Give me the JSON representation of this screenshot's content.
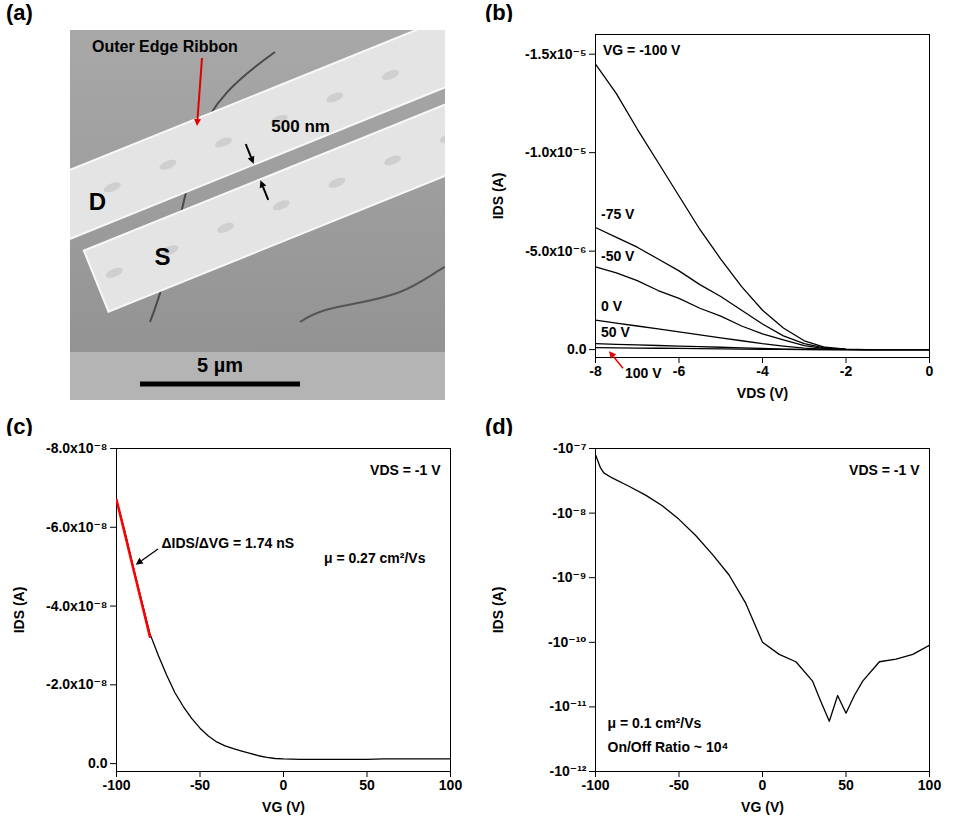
{
  "chart_data": [
    {
      "type": "image",
      "panel": "(a)",
      "labels": {
        "ribbon": "Outer Edge Ribbon",
        "drain": "D",
        "source": "S",
        "gap": "500 nm"
      },
      "scale_bar": "5 µm"
    },
    {
      "type": "line",
      "panel": "(b)",
      "xlabel": "VDS (V)",
      "ylabel": "IDS (A)",
      "x": [
        -8,
        -7.5,
        -7,
        -6.5,
        -6,
        -5.5,
        -5,
        -4.5,
        -4,
        -3.5,
        -3,
        -2.5,
        -2,
        -1.5,
        -1,
        -0.5,
        0
      ],
      "series": [
        {
          "name": "VG = -100 V",
          "color": "black",
          "values": [
            -1.45e-05,
            -1.3e-05,
            -1.12e-05,
            -9.5e-06,
            -7.8e-06,
            -6.1e-06,
            -4.6e-06,
            -3.2e-06,
            -2e-06,
            -1.1e-06,
            -4.5e-07,
            -1.2e-07,
            -2e-08,
            0,
            0,
            0,
            0
          ]
        },
        {
          "name": "-75 V",
          "color": "black",
          "values": [
            -6.2e-06,
            -5.7e-06,
            -5.2e-06,
            -4.6e-06,
            -4e-06,
            -3.3e-06,
            -2.7e-06,
            -2e-06,
            -1.3e-06,
            -7e-07,
            -3e-07,
            -8e-08,
            -1e-08,
            0,
            0,
            0,
            0
          ]
        },
        {
          "name": "-50 V",
          "color": "black",
          "values": [
            -4.2e-06,
            -3.9e-06,
            -3.5e-06,
            -3e-06,
            -2.6e-06,
            -2.1e-06,
            -1.7e-06,
            -1.2e-06,
            -8e-07,
            -5e-07,
            -2e-07,
            -5e-08,
            -1e-08,
            0,
            0,
            0,
            0
          ]
        },
        {
          "name": "0 V",
          "color": "black",
          "values": [
            -1.5e-06,
            -1.35e-06,
            -1.2e-06,
            -1.05e-06,
            -9e-07,
            -7.5e-07,
            -6e-07,
            -4.5e-07,
            -3e-07,
            -1.8e-07,
            -8e-08,
            -2e-08,
            0,
            0,
            0,
            0,
            0
          ]
        },
        {
          "name": "50 V",
          "color": "black",
          "values": [
            -3e-07,
            -2.7e-07,
            -2.4e-07,
            -2.1e-07,
            -1.8e-07,
            -1.5e-07,
            -1.2e-07,
            -9e-08,
            -6e-08,
            -3e-08,
            -1e-08,
            0,
            0,
            0,
            0,
            0,
            0
          ]
        },
        {
          "name": "100 V",
          "color": "black",
          "values": [
            -1e-07,
            -9e-08,
            -8e-08,
            -7e-08,
            -6e-08,
            -5e-08,
            -4e-08,
            -3e-08,
            -2e-08,
            -1e-08,
            0,
            0,
            0,
            0,
            0,
            0,
            0
          ]
        }
      ],
      "xlim": [
        -8,
        0
      ],
      "xticks": [
        -8,
        -6,
        -4,
        -2,
        0
      ],
      "ylim": [
        4e-07,
        -1.6e-05
      ],
      "yticks": [
        {
          "value": 0,
          "label": "0.0"
        },
        {
          "value": -5e-06,
          "label": "-5.0x10⁻⁶"
        },
        {
          "value": -1e-05,
          "label": "-1.0x10⁻⁵"
        },
        {
          "value": -1.5e-05,
          "label": "-1.5x10⁻⁵"
        }
      ]
    },
    {
      "type": "line",
      "panel": "(c)",
      "xlabel": "VG (V)",
      "ylabel": "IDS (A)",
      "x": [
        -100,
        -95,
        -90,
        -85,
        -80,
        -75,
        -70,
        -65,
        -60,
        -55,
        -50,
        -45,
        -40,
        -35,
        -30,
        -25,
        -20,
        -15,
        -10,
        -5,
        0,
        10,
        20,
        30,
        40,
        50,
        60,
        70,
        80,
        90,
        100
      ],
      "values": [
        -6.7e-08,
        -5.9e-08,
        -5e-08,
        -4.15e-08,
        -3.3e-08,
        -2.75e-08,
        -2.25e-08,
        -1.8e-08,
        -1.45e-08,
        -1.15e-08,
        -9e-09,
        -7e-09,
        -5.5e-09,
        -4.5e-09,
        -3.8e-09,
        -3.2e-09,
        -2.6e-09,
        -2e-09,
        -1.6e-09,
        -1.3e-09,
        -1.2e-09,
        -1.1e-09,
        -1.1e-09,
        -1.1e-09,
        -1.1e-09,
        -1.1e-09,
        -1.2e-09,
        -1.2e-09,
        -1.2e-09,
        -1.2e-09,
        -1.2e-09
      ],
      "color": "black",
      "fit": {
        "x": [
          -100,
          -80
        ],
        "values": [
          -6.7e-08,
          -3.22e-08
        ],
        "color": "red"
      },
      "annotations": [
        "VDS = -1 V",
        "ΔIDS/ΔVG = 1.74 nS",
        "μ = 0.27 cm²/Vs"
      ],
      "xlim": [
        -100,
        100
      ],
      "xticks": [
        -100,
        -50,
        0,
        50,
        100
      ],
      "ylim": [
        2e-09,
        -8e-08
      ],
      "yticks": [
        {
          "value": 0,
          "label": "0.0"
        },
        {
          "value": -2e-08,
          "label": "-2.0x10⁻⁸"
        },
        {
          "value": -4e-08,
          "label": "-4.0x10⁻⁸"
        },
        {
          "value": -6e-08,
          "label": "-6.0x10⁻⁸"
        },
        {
          "value": -8e-08,
          "label": "-8.0x10⁻⁸"
        }
      ]
    },
    {
      "type": "line",
      "panel": "(d)",
      "xlabel": "VG (V)",
      "ylabel": "IDS (A)",
      "log": "y",
      "x": [
        -100,
        -97,
        -95,
        -90,
        -80,
        -70,
        -60,
        -50,
        -40,
        -30,
        -20,
        -10,
        0,
        10,
        20,
        30,
        35,
        40,
        45,
        50,
        55,
        60,
        70,
        80,
        90,
        100
      ],
      "values": [
        -8e-08,
        -5e-08,
        -4.2e-08,
        -3.5e-08,
        -2.6e-08,
        -1.9e-08,
        -1.3e-08,
        -8e-09,
        -4.5e-09,
        -2.3e-09,
        -1.1e-09,
        -4e-10,
        -1e-10,
        -6.5e-11,
        -5e-11,
        -2.5e-11,
        -1.2e-11,
        -6e-12,
        -1.5e-11,
        -8e-12,
        -1.5e-11,
        -2.5e-11,
        -5e-11,
        -5.5e-11,
        -6.5e-11,
        -9e-11
      ],
      "color": "black",
      "annotations": [
        "VDS = -1 V",
        "μ = 0.1 cm²/Vs",
        "On/Off Ratio ~ 10⁴"
      ],
      "xlim": [
        -100,
        100
      ],
      "xticks": [
        -100,
        -50,
        0,
        50,
        100
      ],
      "ylim": [
        -1e-12,
        -1e-07
      ],
      "yticks": [
        {
          "value": -1e-07,
          "label": "-10⁻⁷"
        },
        {
          "value": -1e-08,
          "label": "-10⁻⁸"
        },
        {
          "value": -1e-09,
          "label": "-10⁻⁹"
        },
        {
          "value": -1e-10,
          "label": "-10⁻¹⁰"
        },
        {
          "value": -1e-11,
          "label": "-10⁻¹¹"
        },
        {
          "value": -1e-12,
          "label": "-10⁻¹²"
        }
      ]
    }
  ]
}
